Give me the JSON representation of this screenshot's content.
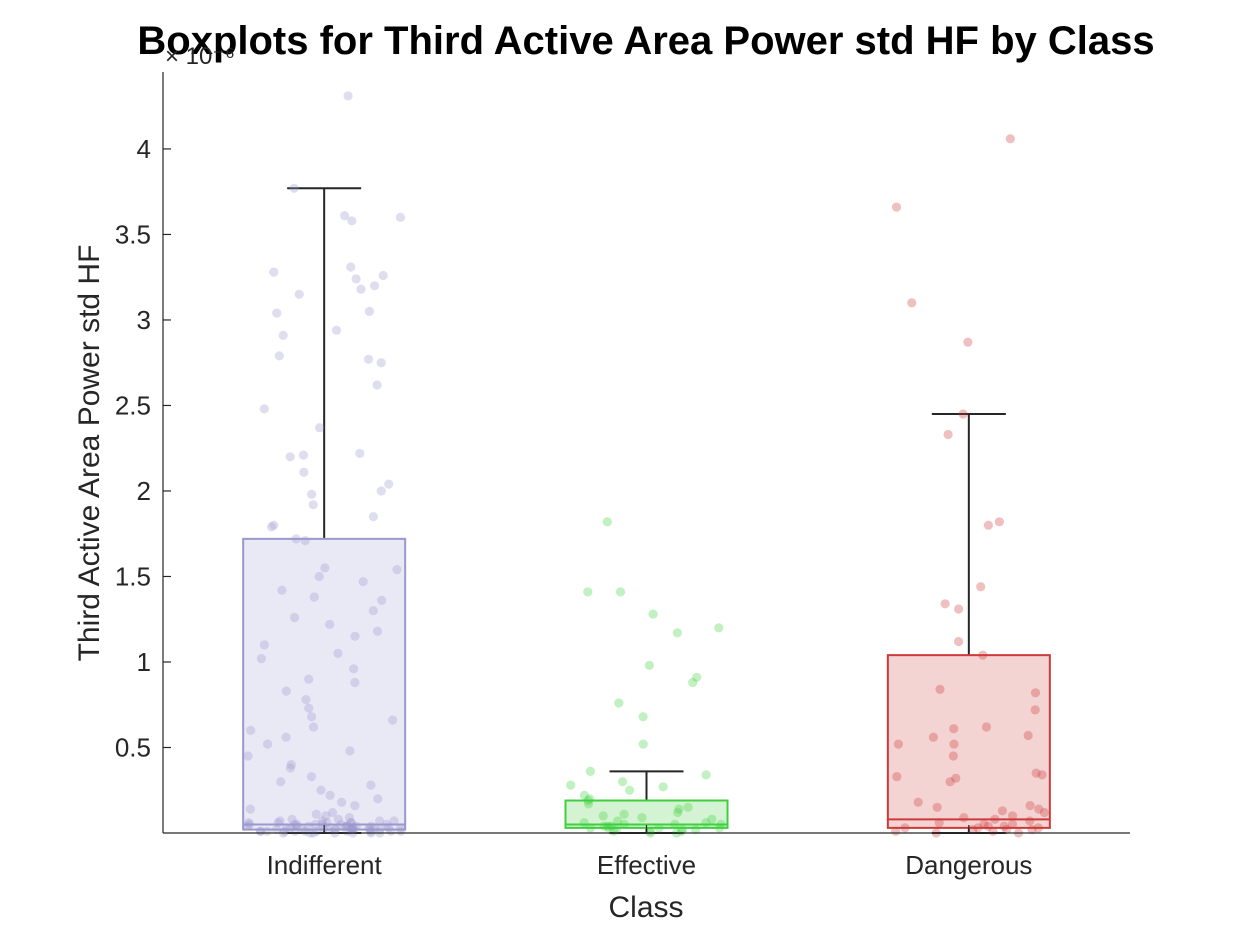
{
  "chart_data": {
    "type": "boxplot",
    "title": "Boxplots for Third Active Area Power std HF by Class",
    "xlabel": "Class",
    "ylabel": "Third Active Area Power std HF",
    "y_multiplier": "× 10⁻⁶",
    "ylim": [
      0,
      4.45
    ],
    "yticks": [
      0.5,
      1,
      1.5,
      2,
      2.5,
      3,
      3.5,
      4
    ],
    "ytick_labels": [
      "0.5",
      "1",
      "1.5",
      "2",
      "2.5",
      "3",
      "3.5",
      "4"
    ],
    "grid": false,
    "categories": [
      "Indifferent",
      "Effective",
      "Dangerous"
    ],
    "boxes": [
      {
        "category": "Indifferent",
        "color": "#9a98cc",
        "fill": "#e9e8f5",
        "q1": 0.02,
        "median": 0.05,
        "q3": 1.72,
        "whisker_low": 0.0,
        "whisker_high": 3.77,
        "points": [
          4.31,
          3.77,
          3.61,
          3.6,
          3.58,
          3.31,
          3.28,
          3.26,
          3.24,
          3.2,
          3.18,
          3.15,
          3.05,
          3.04,
          2.94,
          2.91,
          2.79,
          2.77,
          2.75,
          2.62,
          2.48,
          2.37,
          2.22,
          2.21,
          2.2,
          2.11,
          2.04,
          2.0,
          1.98,
          1.92,
          1.85,
          1.8,
          1.79,
          1.72,
          1.71,
          1.55,
          1.54,
          1.5,
          1.47,
          1.42,
          1.38,
          1.36,
          1.3,
          1.26,
          1.22,
          1.18,
          1.15,
          1.1,
          1.05,
          1.02,
          0.96,
          0.9,
          0.88,
          0.83,
          0.78,
          0.73,
          0.68,
          0.66,
          0.62,
          0.6,
          0.56,
          0.52,
          0.48,
          0.45,
          0.4,
          0.38,
          0.33,
          0.3,
          0.28,
          0.25,
          0.22,
          0.2,
          0.18,
          0.16,
          0.14,
          0.12,
          0.11,
          0.1,
          0.09,
          0.08,
          0.07,
          0.07,
          0.06,
          0.06,
          0.05,
          0.05,
          0.05,
          0.04,
          0.04,
          0.04,
          0.04,
          0.03,
          0.03,
          0.03,
          0.03,
          0.03,
          0.02,
          0.02,
          0.02,
          0.02,
          0.02,
          0.02,
          0.01,
          0.01,
          0.01,
          0.01,
          0.01,
          0.01,
          0.01,
          0.0,
          0.0,
          0.0,
          0.0,
          0.0,
          0.06,
          0.05,
          0.04,
          0.03,
          0.02,
          0.01,
          0.08,
          0.07,
          0.05,
          0.04,
          0.03,
          0.02,
          0.01,
          0.0,
          0.06,
          0.05,
          0.04,
          0.03,
          0.02,
          0.01,
          0.0,
          0.07,
          0.06,
          0.05,
          0.04,
          0.03,
          0.02,
          0.01
        ]
      },
      {
        "category": "Effective",
        "color": "#3fcf3f",
        "fill": "#d4f3d2",
        "q1": 0.03,
        "median": 0.05,
        "q3": 0.19,
        "whisker_low": 0.0,
        "whisker_high": 0.36,
        "points": [
          1.82,
          1.41,
          1.41,
          1.28,
          1.2,
          1.17,
          0.98,
          0.91,
          0.88,
          0.76,
          0.68,
          0.52,
          0.36,
          0.34,
          0.3,
          0.28,
          0.27,
          0.25,
          0.22,
          0.2,
          0.19,
          0.17,
          0.15,
          0.14,
          0.12,
          0.11,
          0.1,
          0.09,
          0.08,
          0.07,
          0.06,
          0.06,
          0.05,
          0.05,
          0.04,
          0.04,
          0.03,
          0.03,
          0.03,
          0.02,
          0.02,
          0.02,
          0.01,
          0.01,
          0.01,
          0.0,
          0.0,
          0.05,
          0.04,
          0.03
        ]
      },
      {
        "category": "Dangerous",
        "color": "#cc3a3a",
        "fill": "#f4d3d3",
        "q1": 0.03,
        "median": 0.08,
        "q3": 1.04,
        "whisker_low": 0.0,
        "whisker_high": 2.45,
        "points": [
          4.06,
          3.66,
          3.1,
          2.87,
          2.45,
          2.33,
          1.82,
          1.8,
          1.44,
          1.34,
          1.31,
          1.12,
          1.04,
          0.84,
          0.82,
          0.72,
          0.62,
          0.61,
          0.57,
          0.56,
          0.52,
          0.52,
          0.45,
          0.35,
          0.34,
          0.33,
          0.32,
          0.3,
          0.18,
          0.16,
          0.15,
          0.14,
          0.13,
          0.12,
          0.1,
          0.09,
          0.08,
          0.07,
          0.06,
          0.05,
          0.05,
          0.04,
          0.03,
          0.03,
          0.02,
          0.02,
          0.01,
          0.01,
          0.0,
          0.0,
          0.04,
          0.03,
          0.02
        ]
      }
    ]
  }
}
